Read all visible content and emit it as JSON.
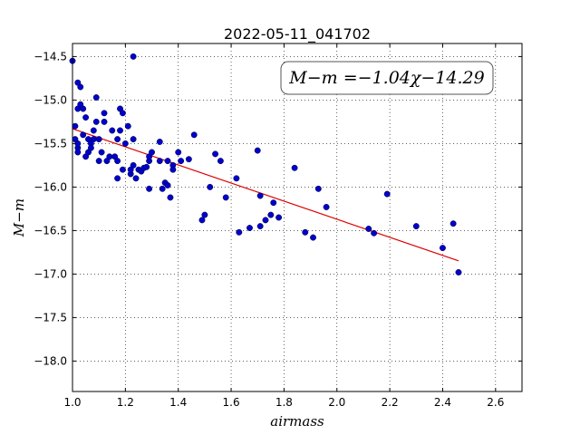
{
  "chart_data": {
    "type": "scatter",
    "title": "2022-05-11_041702",
    "xlabel": "airmass",
    "ylabel": "M−m",
    "xlim": [
      1.0,
      2.7
    ],
    "ylim": [
      -18.35,
      -14.35
    ],
    "y_inverted": true,
    "x_ticks": [
      "1.0",
      "1.2",
      "1.4",
      "1.6",
      "1.8",
      "2.0",
      "2.2",
      "2.4",
      "2.6"
    ],
    "y_ticks": [
      "−14.5",
      "−15.0",
      "−15.5",
      "−16.0",
      "−16.5",
      "−17.0",
      "−17.5",
      "−18.0"
    ],
    "grid": true,
    "annotation": "M−m =−1.04χ−14.29",
    "colors": {
      "points": "#0000cc",
      "fit_line": "#dd0000"
    },
    "fit": {
      "slope": -1.04,
      "intercept": -14.29,
      "x_range": [
        1.0,
        2.46
      ]
    },
    "points": [
      [
        1.0,
        -14.55
      ],
      [
        1.01,
        -15.3
      ],
      [
        1.01,
        -15.45
      ],
      [
        1.02,
        -15.55
      ],
      [
        1.02,
        -15.5
      ],
      [
        1.02,
        -14.8
      ],
      [
        1.03,
        -14.85
      ],
      [
        1.02,
        -15.1
      ],
      [
        1.03,
        -15.05
      ],
      [
        1.04,
        -15.1
      ],
      [
        1.02,
        -15.6
      ],
      [
        1.04,
        -15.4
      ],
      [
        1.05,
        -15.65
      ],
      [
        1.05,
        -15.2
      ],
      [
        1.06,
        -15.45
      ],
      [
        1.06,
        -15.6
      ],
      [
        1.07,
        -15.5
      ],
      [
        1.07,
        -15.55
      ],
      [
        1.08,
        -15.45
      ],
      [
        1.08,
        -15.35
      ],
      [
        1.09,
        -14.97
      ],
      [
        1.09,
        -15.25
      ],
      [
        1.1,
        -15.45
      ],
      [
        1.1,
        -15.7
      ],
      [
        1.11,
        -15.6
      ],
      [
        1.12,
        -15.25
      ],
      [
        1.12,
        -15.15
      ],
      [
        1.13,
        -15.7
      ],
      [
        1.14,
        -15.65
      ],
      [
        1.15,
        -15.35
      ],
      [
        1.16,
        -15.65
      ],
      [
        1.17,
        -15.45
      ],
      [
        1.17,
        -15.7
      ],
      [
        1.17,
        -15.9
      ],
      [
        1.18,
        -15.1
      ],
      [
        1.18,
        -15.35
      ],
      [
        1.19,
        -15.15
      ],
      [
        1.19,
        -15.8
      ],
      [
        1.2,
        -15.5
      ],
      [
        1.21,
        -15.3
      ],
      [
        1.22,
        -15.85
      ],
      [
        1.22,
        -15.8
      ],
      [
        1.23,
        -15.75
      ],
      [
        1.23,
        -15.45
      ],
      [
        1.23,
        -14.5
      ],
      [
        1.24,
        -15.9
      ],
      [
        1.25,
        -15.8
      ],
      [
        1.26,
        -15.82
      ],
      [
        1.27,
        -15.78
      ],
      [
        1.28,
        -15.77
      ],
      [
        1.29,
        -15.7
      ],
      [
        1.29,
        -15.65
      ],
      [
        1.29,
        -16.02
      ],
      [
        1.3,
        -15.6
      ],
      [
        1.33,
        -15.48
      ],
      [
        1.33,
        -15.7
      ],
      [
        1.34,
        -16.02
      ],
      [
        1.35,
        -15.95
      ],
      [
        1.36,
        -15.7
      ],
      [
        1.36,
        -15.98
      ],
      [
        1.37,
        -16.12
      ],
      [
        1.38,
        -15.75
      ],
      [
        1.38,
        -15.8
      ],
      [
        1.4,
        -15.6
      ],
      [
        1.41,
        -15.7
      ],
      [
        1.44,
        -15.68
      ],
      [
        1.46,
        -15.4
      ],
      [
        1.49,
        -16.38
      ],
      [
        1.5,
        -16.32
      ],
      [
        1.52,
        -16.0
      ],
      [
        1.54,
        -15.62
      ],
      [
        1.56,
        -15.7
      ],
      [
        1.58,
        -16.12
      ],
      [
        1.62,
        -15.9
      ],
      [
        1.63,
        -16.52
      ],
      [
        1.67,
        -16.47
      ],
      [
        1.7,
        -15.58
      ],
      [
        1.71,
        -16.45
      ],
      [
        1.71,
        -16.1
      ],
      [
        1.73,
        -16.38
      ],
      [
        1.75,
        -16.32
      ],
      [
        1.76,
        -16.18
      ],
      [
        1.78,
        -16.35
      ],
      [
        1.84,
        -15.78
      ],
      [
        1.88,
        -16.52
      ],
      [
        1.91,
        -16.58
      ],
      [
        1.93,
        -16.02
      ],
      [
        1.96,
        -16.23
      ],
      [
        2.12,
        -16.48
      ],
      [
        2.14,
        -16.53
      ],
      [
        2.19,
        -16.08
      ],
      [
        2.3,
        -16.45
      ],
      [
        2.4,
        -16.7
      ],
      [
        2.44,
        -16.42
      ],
      [
        2.46,
        -16.98
      ]
    ]
  }
}
